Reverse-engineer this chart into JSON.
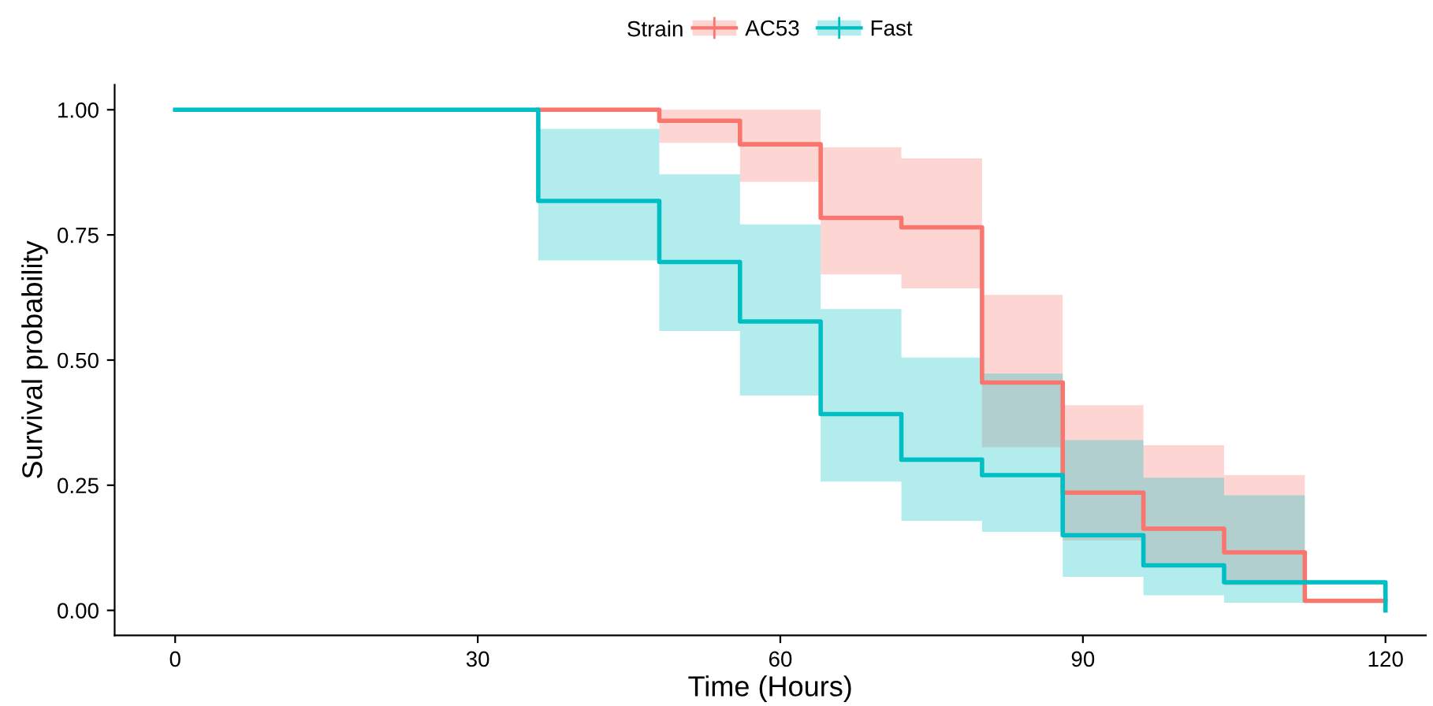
{
  "chart_data": {
    "type": "step",
    "xlabel": "Time (Hours)",
    "ylabel": "Survival probability",
    "legend_title": "Strain",
    "legend": "top",
    "xlim": [
      -6,
      124
    ],
    "xticks": [
      0,
      30,
      60,
      90,
      120
    ],
    "ylim": [
      -0.05,
      1.05
    ],
    "yticks": [
      {
        "value": 0,
        "label": "0.00"
      },
      {
        "value": 0.25,
        "label": "0.25"
      },
      {
        "value": 0.5,
        "label": "0.50"
      },
      {
        "value": 0.75,
        "label": "0.75"
      },
      {
        "value": 1,
        "label": "1.00"
      }
    ],
    "grid": false,
    "series": [
      {
        "name": "AC53",
        "color": "#f8766d",
        "x": [
          36,
          48,
          56,
          64,
          72,
          80,
          88,
          96,
          104,
          112,
          120
        ],
        "values": [
          1,
          0.978,
          0.931,
          0.784,
          0.765,
          0.455,
          0.235,
          0.163,
          0.116,
          0.019,
          0.019
        ],
        "lower": [
          null,
          0.934,
          0.856,
          0.671,
          0.643,
          0.326,
          0.14,
          0.09,
          0.05,
          0.05,
          null
        ],
        "upper": [
          null,
          1.0,
          1.0,
          0.925,
          0.903,
          0.63,
          0.41,
          0.33,
          0.27,
          0.27,
          null
        ]
      },
      {
        "name": "Fast",
        "color": "#00bfc4",
        "x": [
          0,
          36,
          48,
          56,
          64,
          72,
          80,
          88,
          96,
          104,
          112,
          120
        ],
        "values": [
          1,
          0.818,
          0.696,
          0.577,
          0.392,
          0.301,
          0.27,
          0.15,
          0.09,
          0.056,
          0.056,
          0
        ],
        "lower": [
          null,
          0.699,
          0.558,
          0.429,
          0.257,
          0.179,
          0.157,
          0.067,
          0.03,
          0.015,
          0.015,
          null
        ],
        "upper": [
          null,
          0.962,
          0.871,
          0.771,
          0.602,
          0.505,
          0.473,
          0.34,
          0.265,
          0.23,
          0.23,
          null
        ]
      }
    ]
  }
}
